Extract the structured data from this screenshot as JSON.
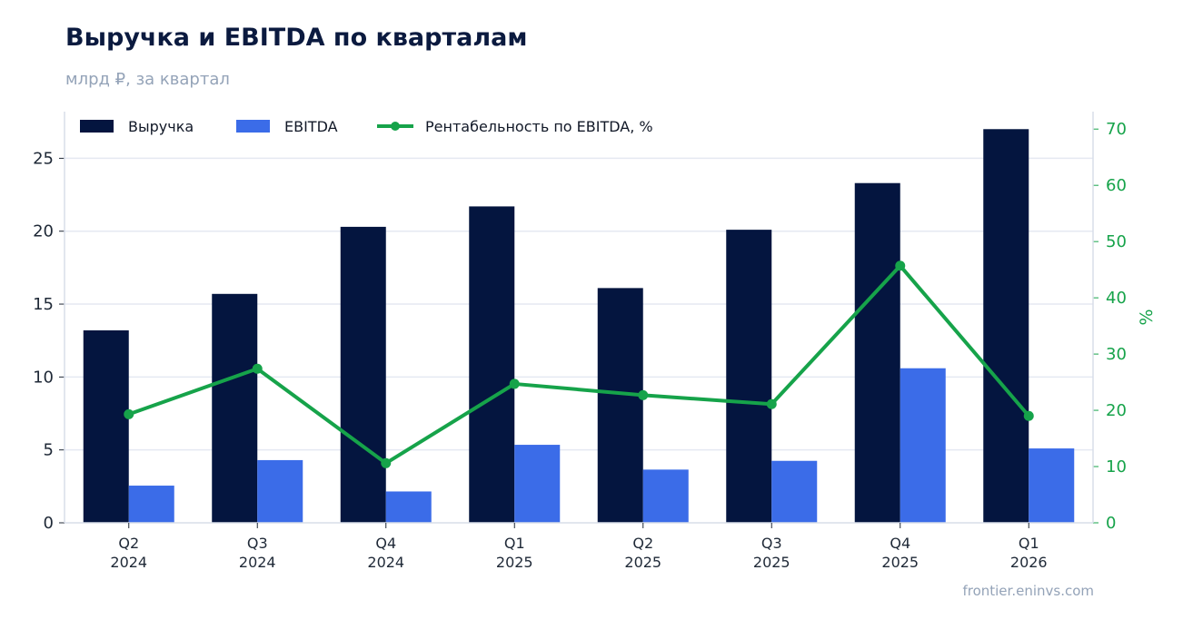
{
  "header": {
    "title": "Выручка и EBITDA по кварталам",
    "subtitle": "млрд ₽, за квартал"
  },
  "footer": {
    "source": "frontier.eninvs.com"
  },
  "colors": {
    "revenue": "#04153f",
    "ebitda": "#3b6ce8",
    "margin": "#16a34a",
    "grid": "#e5e9f2",
    "axis": "#d8dee9"
  },
  "chart_data": {
    "type": "bar",
    "categories": [
      [
        "Q2",
        "2024"
      ],
      [
        "Q3",
        "2024"
      ],
      [
        "Q4",
        "2024"
      ],
      [
        "Q1",
        "2025"
      ],
      [
        "Q2",
        "2025"
      ],
      [
        "Q3",
        "2025"
      ],
      [
        "Q4",
        "2025"
      ],
      [
        "Q1",
        "2026"
      ]
    ],
    "series": [
      {
        "name": "Выручка",
        "kind": "bar",
        "axis": "left",
        "values": [
          13.2,
          15.7,
          20.3,
          21.7,
          16.1,
          20.1,
          23.3,
          27.0
        ]
      },
      {
        "name": "EBITDA",
        "kind": "bar",
        "axis": "left",
        "values": [
          2.55,
          4.3,
          2.15,
          5.35,
          3.65,
          4.25,
          10.6,
          5.1
        ]
      },
      {
        "name": "Рентабельность по EBITDA, %",
        "kind": "line",
        "axis": "right",
        "values": [
          19.3,
          27.4,
          10.6,
          24.7,
          22.7,
          21.1,
          45.7,
          19.0
        ]
      }
    ],
    "ylim": [
      0,
      28.2
    ],
    "yticks": [
      0,
      5,
      10,
      15,
      20,
      25
    ],
    "y2lim": [
      0,
      73.1
    ],
    "y2ticks": [
      0,
      10,
      20,
      30,
      40,
      50,
      60,
      70
    ],
    "y2label": "%",
    "grid": true,
    "legend": "top-left"
  }
}
